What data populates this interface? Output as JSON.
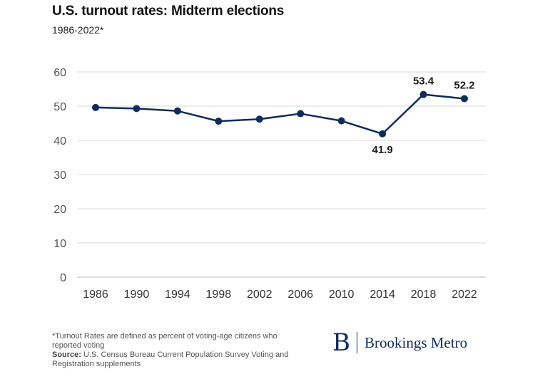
{
  "header": {
    "title": "U.S. turnout rates: Midterm elections",
    "subtitle": "1986-2022*"
  },
  "chart_data": {
    "type": "line",
    "title": "U.S. turnout rates: Midterm elections",
    "subtitle": "1986-2022*",
    "xlabel": "",
    "ylabel": "",
    "categories": [
      "1986",
      "1990",
      "1994",
      "1998",
      "2002",
      "2006",
      "2010",
      "2014",
      "2018",
      "2022"
    ],
    "series": [
      {
        "values": [
          49.6,
          49.3,
          48.6,
          45.6,
          46.2,
          47.8,
          45.7,
          41.9,
          53.4,
          52.2
        ],
        "color": "#0f2d5c"
      }
    ],
    "data_labels": [
      {
        "category": "2014",
        "text": "41.9",
        "placement": "below"
      },
      {
        "category": "2018",
        "text": "53.4",
        "placement": "above"
      },
      {
        "category": "2022",
        "text": "52.2",
        "placement": "above"
      }
    ],
    "y_ticks": [
      "0",
      "10",
      "20",
      "30",
      "40",
      "50",
      "60"
    ],
    "ylim": [
      0,
      60
    ],
    "grid": true,
    "legend": "none"
  },
  "footer": {
    "note": "*Turnout Rates are defined as percent of voting-age citizens who reported voting",
    "source_label": "Source:",
    "source_text": " U.S. Census Bureau Current Population Survey Voting and Registration supplements"
  },
  "logo": {
    "mark": "B",
    "text": "Brookings Metro",
    "color": "#0f2d5c"
  }
}
